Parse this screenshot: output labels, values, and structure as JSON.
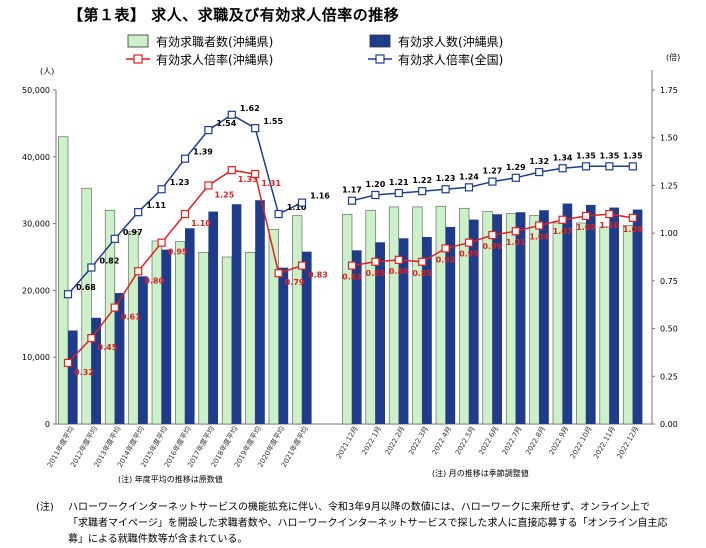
{
  "title": "【第１表】 求人、求職及び有効求人倍率の推移",
  "notes": {
    "annual": "(注) 年度平均の推移は原数値",
    "monthly": "(注) 月の推移は季節調整値"
  },
  "footnote": {
    "label": "(注)",
    "text": "ハローワークインターネットサービスの機能拡充に伴い、令和3年9月以降の数値には、ハローワークに来所せず、オンライン上で「求職者マイページ」を開設した求職者数や、ハローワークインターネットサービスで探した求人に直接応募する「オンライン自主応募」による就職件数等が含まれている。"
  },
  "chart_data": {
    "type": "bar",
    "left_axis": {
      "unit": "(人)",
      "ticks": [
        "0",
        "10,000",
        "20,000",
        "30,000",
        "40,000",
        "50,000"
      ],
      "range": [
        0,
        50000
      ]
    },
    "right_axis": {
      "unit": "(倍)",
      "ticks": [
        "0.00",
        "0.25",
        "0.50",
        "0.75",
        "1.00",
        "1.25",
        "1.50",
        "1.75"
      ],
      "range": [
        0,
        1.75
      ]
    },
    "categories": [
      "2011年度平均",
      "2012年度平均",
      "2013年度平均",
      "2014年度平均",
      "2015年度平均",
      "2016年度平均",
      "2017年度平均",
      "2018年度平均",
      "2019年度平均",
      "2020年度平均",
      "2021年度平均",
      "2021.12月",
      "2022.1月",
      "2022.2月",
      "2022.3月",
      "2022.4月",
      "2022.5月",
      "2022.6月",
      "2022.7月",
      "2022.8月",
      "2022.9月",
      "2022.10月",
      "2022.11月",
      "2022.12月"
    ],
    "series": [
      {
        "name": "有効求職者数(沖縄県)",
        "kind": "bar",
        "axis": "left",
        "color": "#ccf0c8",
        "values": [
          43000,
          35300,
          32000,
          28800,
          27400,
          27300,
          25700,
          25000,
          25700,
          29100,
          31200,
          31400,
          32000,
          32500,
          32500,
          32600,
          32300,
          31800,
          31500,
          31200,
          30100,
          30100,
          29500,
          29700
        ]
      },
      {
        "name": "有効求人数(沖縄県)",
        "kind": "bar",
        "axis": "left",
        "color": "#1f3c8c",
        "values": [
          14000,
          15900,
          19600,
          22100,
          26100,
          29300,
          31800,
          32900,
          33500,
          23400,
          25800,
          26000,
          27200,
          27800,
          28000,
          29500,
          30600,
          31400,
          31700,
          32000,
          33000,
          32800,
          32400,
          32100
        ]
      },
      {
        "name": "有効求人倍率(沖縄県)",
        "kind": "line",
        "axis": "right",
        "color": "#e02020",
        "values": [
          0.32,
          0.45,
          0.61,
          0.8,
          0.95,
          1.1,
          1.25,
          1.33,
          1.31,
          0.79,
          0.83,
          0.83,
          0.85,
          0.86,
          0.85,
          0.92,
          0.95,
          0.99,
          1.01,
          1.04,
          1.07,
          1.09,
          1.1,
          1.08
        ],
        "labels": [
          "0.32",
          "0.45",
          "0.61",
          "0.80",
          "0.95",
          "1.10",
          "1.25",
          "1.33",
          "1.31",
          "0.79",
          "0.83",
          "0.83",
          "0.85",
          "0.86",
          "0.85",
          "0.92",
          "0.95",
          "0.99",
          "1.01",
          "1.04",
          "1.07",
          "1.09",
          "1.10",
          "1.08"
        ]
      },
      {
        "name": "有効求人倍率(全国)",
        "kind": "line",
        "axis": "right",
        "color": "#1f3c8c",
        "values": [
          0.68,
          0.82,
          0.97,
          1.11,
          1.23,
          1.39,
          1.54,
          1.62,
          1.55,
          1.1,
          1.16,
          1.17,
          1.2,
          1.21,
          1.22,
          1.23,
          1.24,
          1.27,
          1.29,
          1.32,
          1.34,
          1.35,
          1.35,
          1.35
        ],
        "labels": [
          "0.68",
          "0.82",
          "0.97",
          "1.11",
          "1.23",
          "1.39",
          "1.54",
          "1.62",
          "1.55",
          "1.10",
          "1.16",
          "1.17",
          "1.20",
          "1.21",
          "1.22",
          "1.23",
          "1.24",
          "1.27",
          "1.29",
          "1.32",
          "1.34",
          "1.35",
          "1.35",
          "1.35"
        ]
      }
    ]
  }
}
